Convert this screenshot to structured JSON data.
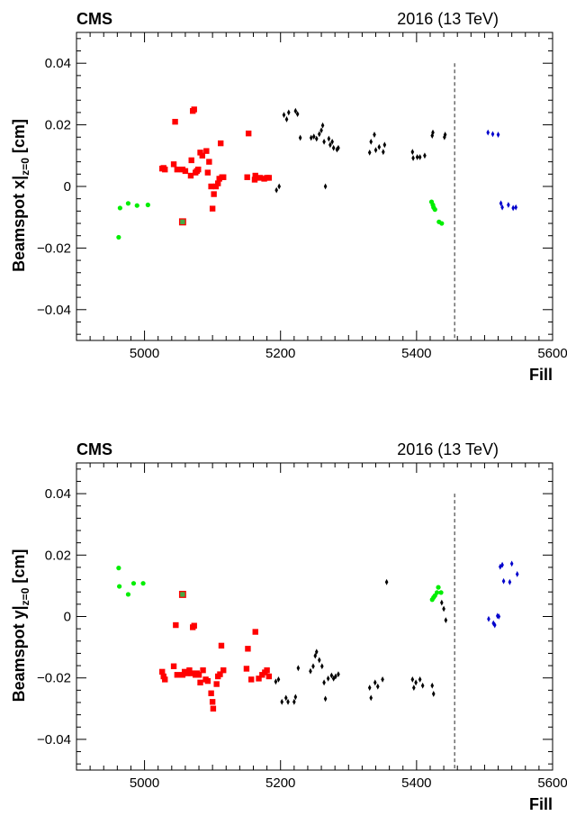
{
  "chart_data": [
    {
      "type": "scatter",
      "experiment_label": "CMS",
      "energy_label": "2016 (13 TeV)",
      "ylabel_main": "Beamspot x|",
      "ylabel_sub": "z=0",
      "ylabel_unit": " [cm]",
      "xlabel": "Fill",
      "xlim": [
        4900,
        5600
      ],
      "ylim": [
        -0.05,
        0.05
      ],
      "x_ticks": [
        5000,
        5200,
        5400,
        5600
      ],
      "y_ticks": [
        -0.04,
        -0.02,
        0,
        0.02,
        0.04
      ],
      "y_tick_labels": [
        "−0.04",
        "−0.02",
        "0",
        "0.02",
        "0.04"
      ],
      "divider_x": 5456,
      "series": [
        {
          "color": "#00ee00",
          "marker": "circle",
          "points": [
            [
              4962,
              -0.0165
            ],
            [
              4964,
              -0.007
            ],
            [
              4976,
              -0.0055
            ],
            [
              4989,
              -0.0062
            ],
            [
              5005,
              -0.006
            ],
            [
              5422,
              -0.005
            ],
            [
              5424,
              -0.006
            ],
            [
              5425,
              -0.0068
            ],
            [
              5427,
              -0.0075
            ],
            [
              5433,
              -0.0115
            ],
            [
              5437,
              -0.012
            ]
          ]
        },
        {
          "color": "#ff0000",
          "marker": "square",
          "points": [
            [
              5026,
              0.0058
            ],
            [
              5028,
              0.006
            ],
            [
              5030,
              0.0055
            ],
            [
              5043,
              0.0072
            ],
            [
              5045,
              0.021
            ],
            [
              5048,
              0.0055
            ],
            [
              5056,
              0.0055
            ],
            [
              5060,
              0.005
            ],
            [
              5068,
              0.0035
            ],
            [
              5069,
              0.0085
            ],
            [
              5071,
              0.0245
            ],
            [
              5073,
              0.025
            ],
            [
              5075,
              0.0045
            ],
            [
              5077,
              0.005
            ],
            [
              5079,
              0.0055
            ],
            [
              5082,
              0.011
            ],
            [
              5085,
              0.01
            ],
            [
              5091,
              0.0115
            ],
            [
              5093,
              0.0045
            ],
            [
              5095,
              0.008
            ],
            [
              5098,
              0.0
            ],
            [
              5100,
              -0.0072
            ],
            [
              5102,
              -0.0025
            ],
            [
              5105,
              0.0
            ],
            [
              5108,
              0.001
            ],
            [
              5110,
              0.0025
            ],
            [
              5112,
              0.014
            ],
            [
              5114,
              0.003
            ],
            [
              5116,
              0.003
            ],
            [
              5151,
              0.003
            ],
            [
              5153,
              0.0172
            ],
            [
              5162,
              0.0022
            ],
            [
              5163,
              0.0035
            ],
            [
              5170,
              0.0028
            ],
            [
              5176,
              0.0025
            ],
            [
              5180,
              0.0028
            ],
            [
              5183,
              0.0028
            ]
          ]
        },
        {
          "color": "#000000",
          "marker": "diamond",
          "points": [
            [
              5194,
              -0.0012
            ],
            [
              5198,
              0.0
            ],
            [
              5205,
              0.0232
            ],
            [
              5209,
              0.0218
            ],
            [
              5212,
              0.024
            ],
            [
              5222,
              0.0245
            ],
            [
              5225,
              0.0235
            ],
            [
              5229,
              0.0158
            ],
            [
              5245,
              0.0158
            ],
            [
              5249,
              0.0162
            ],
            [
              5253,
              0.0155
            ],
            [
              5257,
              0.017
            ],
            [
              5260,
              0.0182
            ],
            [
              5262,
              0.0198
            ],
            [
              5264,
              0.0145
            ],
            [
              5266,
              0.0
            ],
            [
              5271,
              0.0155
            ],
            [
              5273,
              0.0135
            ],
            [
              5276,
              0.0145
            ],
            [
              5278,
              0.0125
            ],
            [
              5283,
              0.012
            ],
            [
              5285,
              0.0125
            ],
            [
              5331,
              0.011
            ],
            [
              5333,
              0.0145
            ],
            [
              5338,
              0.0168
            ],
            [
              5340,
              0.0118
            ],
            [
              5345,
              0.0128
            ],
            [
              5351,
              0.0112
            ],
            [
              5353,
              0.0135
            ],
            [
              5394,
              0.0112
            ],
            [
              5395,
              0.0092
            ],
            [
              5401,
              0.0095
            ],
            [
              5405,
              0.0095
            ],
            [
              5412,
              0.01
            ],
            [
              5423,
              0.0165
            ],
            [
              5424,
              0.0175
            ],
            [
              5441,
              0.016
            ],
            [
              5442,
              0.0168
            ]
          ]
        },
        {
          "color": "#0000cc",
          "marker": "diamond",
          "points": [
            [
              5505,
              0.0175
            ],
            [
              5512,
              0.017
            ],
            [
              5520,
              0.0168
            ],
            [
              5524,
              -0.0055
            ],
            [
              5526,
              -0.0068
            ],
            [
              5535,
              -0.006
            ],
            [
              5542,
              -0.007
            ],
            [
              5546,
              -0.0068
            ]
          ]
        }
      ],
      "highlight": {
        "x": 5056,
        "y": -0.0115,
        "fill": "#44aa44",
        "edge": "#ff0000"
      }
    },
    {
      "type": "scatter",
      "experiment_label": "CMS",
      "energy_label": "2016 (13 TeV)",
      "ylabel_main": "Beamspot y|",
      "ylabel_sub": "z=0",
      "ylabel_unit": " [cm]",
      "xlabel": "Fill",
      "xlim": [
        4900,
        5600
      ],
      "ylim": [
        -0.05,
        0.05
      ],
      "x_ticks": [
        5000,
        5200,
        5400,
        5600
      ],
      "y_ticks": [
        -0.04,
        -0.02,
        0,
        0.02,
        0.04
      ],
      "y_tick_labels": [
        "−0.04",
        "−0.02",
        "0",
        "0.02",
        "0.04"
      ],
      "divider_x": 5456,
      "series": [
        {
          "color": "#00ee00",
          "marker": "circle",
          "points": [
            [
              4962,
              0.0158
            ],
            [
              4963,
              0.0098
            ],
            [
              4976,
              0.0072
            ],
            [
              4984,
              0.0108
            ],
            [
              4998,
              0.0108
            ],
            [
              5423,
              0.0055
            ],
            [
              5425,
              0.0062
            ],
            [
              5427,
              0.0068
            ],
            [
              5430,
              0.0078
            ],
            [
              5432,
              0.0095
            ],
            [
              5436,
              0.0078
            ]
          ]
        },
        {
          "color": "#ff0000",
          "marker": "square",
          "points": [
            [
              5026,
              -0.018
            ],
            [
              5028,
              -0.0195
            ],
            [
              5030,
              -0.0205
            ],
            [
              5043,
              -0.0162
            ],
            [
              5046,
              -0.0028
            ],
            [
              5048,
              -0.019
            ],
            [
              5056,
              -0.019
            ],
            [
              5059,
              -0.018
            ],
            [
              5062,
              -0.0185
            ],
            [
              5066,
              -0.0175
            ],
            [
              5069,
              -0.0185
            ],
            [
              5071,
              -0.0035
            ],
            [
              5073,
              -0.003
            ],
            [
              5075,
              -0.019
            ],
            [
              5077,
              -0.0185
            ],
            [
              5080,
              -0.019
            ],
            [
              5082,
              -0.0215
            ],
            [
              5086,
              -0.0175
            ],
            [
              5090,
              -0.0205
            ],
            [
              5093,
              -0.021
            ],
            [
              5098,
              -0.025
            ],
            [
              5100,
              -0.0278
            ],
            [
              5101,
              -0.03
            ],
            [
              5106,
              -0.022
            ],
            [
              5108,
              -0.0195
            ],
            [
              5111,
              -0.0188
            ],
            [
              5113,
              -0.0095
            ],
            [
              5116,
              -0.0175
            ],
            [
              5150,
              -0.017
            ],
            [
              5152,
              -0.0105
            ],
            [
              5157,
              -0.0205
            ],
            [
              5163,
              -0.005
            ],
            [
              5168,
              -0.0202
            ],
            [
              5173,
              -0.019
            ],
            [
              5177,
              -0.0182
            ],
            [
              5180,
              -0.0175
            ],
            [
              5183,
              -0.0195
            ]
          ]
        },
        {
          "color": "#000000",
          "marker": "diamond",
          "points": [
            [
              5193,
              -0.0212
            ],
            [
              5197,
              -0.0205
            ],
            [
              5202,
              -0.0278
            ],
            [
              5208,
              -0.0265
            ],
            [
              5211,
              -0.0278
            ],
            [
              5220,
              -0.0278
            ],
            [
              5222,
              -0.0262
            ],
            [
              5226,
              -0.0168
            ],
            [
              5244,
              -0.0178
            ],
            [
              5248,
              -0.0162
            ],
            [
              5251,
              -0.0128
            ],
            [
              5253,
              -0.0115
            ],
            [
              5257,
              -0.0142
            ],
            [
              5261,
              -0.0162
            ],
            [
              5264,
              -0.0215
            ],
            [
              5266,
              -0.0268
            ],
            [
              5270,
              -0.0202
            ],
            [
              5275,
              -0.0192
            ],
            [
              5278,
              -0.0202
            ],
            [
              5281,
              -0.0195
            ],
            [
              5285,
              -0.0188
            ],
            [
              5331,
              -0.0232
            ],
            [
              5333,
              -0.0265
            ],
            [
              5339,
              -0.0215
            ],
            [
              5343,
              -0.0228
            ],
            [
              5350,
              -0.0205
            ],
            [
              5356,
              0.0112
            ],
            [
              5394,
              -0.0205
            ],
            [
              5396,
              -0.0232
            ],
            [
              5399,
              -0.0215
            ],
            [
              5405,
              -0.0205
            ],
            [
              5409,
              -0.0225
            ],
            [
              5423,
              -0.0225
            ],
            [
              5425,
              -0.0252
            ],
            [
              5437,
              0.0045
            ],
            [
              5440,
              0.0025
            ],
            [
              5443,
              -0.0012
            ]
          ]
        },
        {
          "color": "#0000cc",
          "marker": "diamond",
          "points": [
            [
              5506,
              -0.0008
            ],
            [
              5513,
              -0.0022
            ],
            [
              5515,
              -0.0028
            ],
            [
              5519,
              0.0002
            ],
            [
              5521,
              0.0
            ],
            [
              5523,
              0.0162
            ],
            [
              5526,
              0.0168
            ],
            [
              5528,
              0.0115
            ],
            [
              5537,
              0.0112
            ],
            [
              5540,
              0.0172
            ],
            [
              5548,
              0.0138
            ]
          ]
        }
      ],
      "highlight": {
        "x": 5056,
        "y": 0.0072,
        "fill": "#44aa44",
        "edge": "#ff0000"
      }
    }
  ]
}
